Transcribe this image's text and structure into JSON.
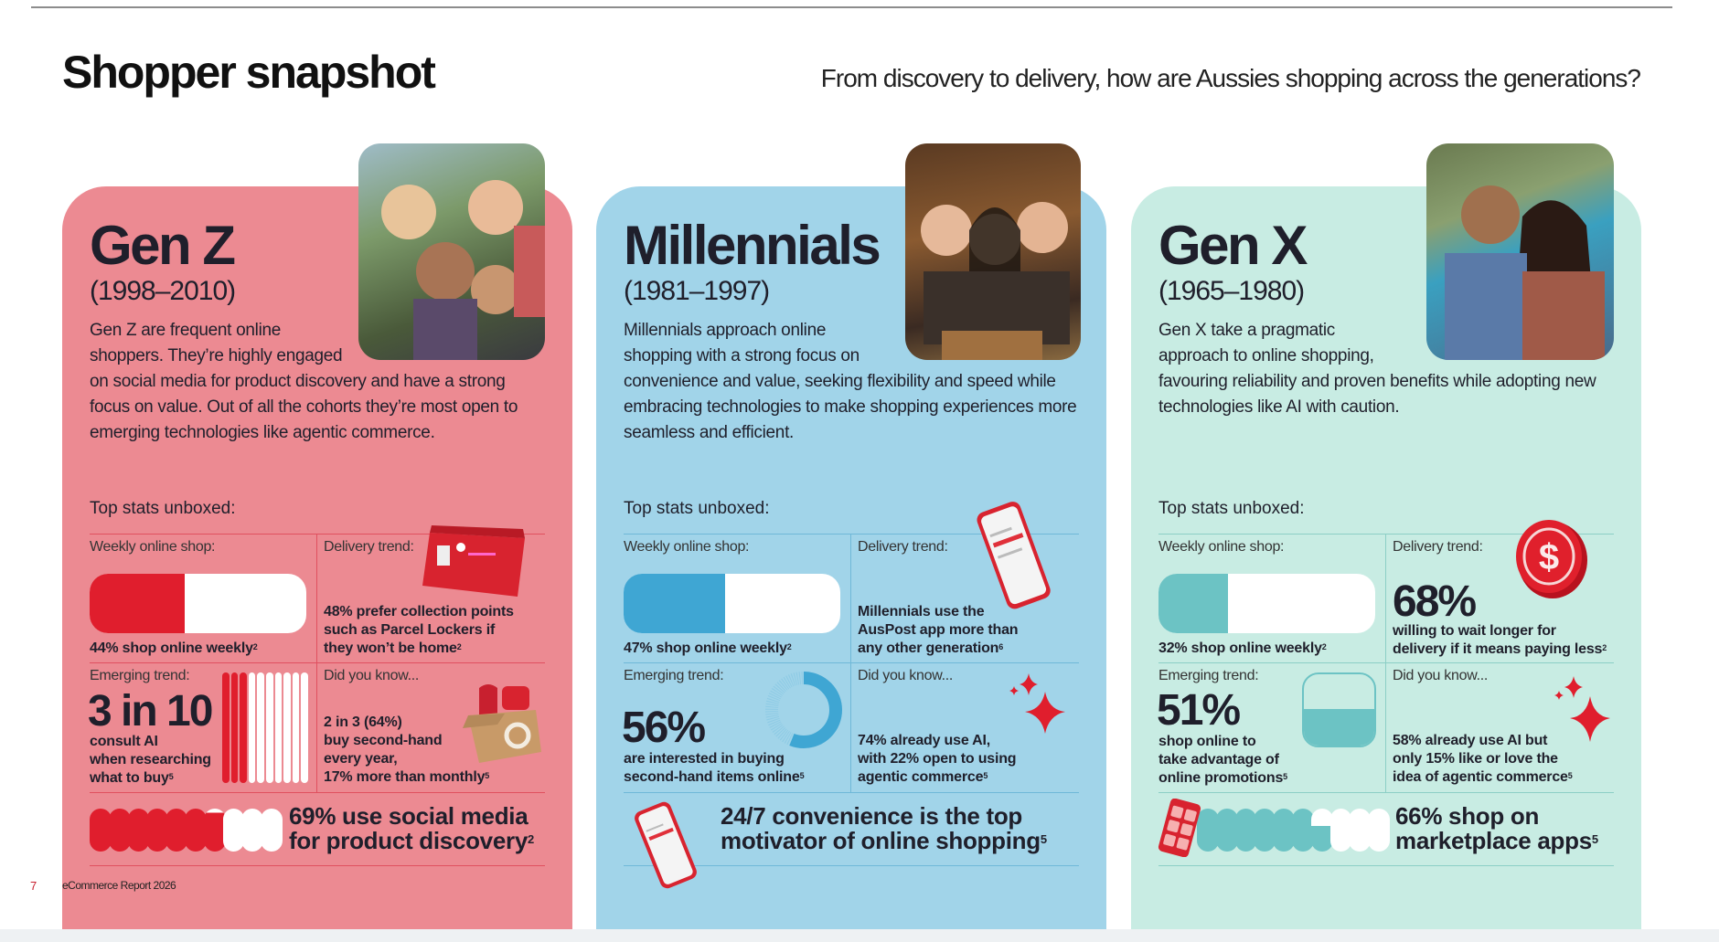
{
  "header": {
    "title": "Shopper snapshot",
    "subtitle": "From discovery to delivery, how are Aussies shopping across the generations?"
  },
  "footer": {
    "page": "7",
    "report": "eCommerce Report 2026"
  },
  "colors": {
    "genz_bg": "#ec8a92",
    "genz_accent": "#e01e2d",
    "mill_bg": "#a1d4e9",
    "mill_accent": "#3fa6d3",
    "genx_bg": "#c8ece3",
    "genx_accent": "#6cc3c4",
    "text": "#1f1f2b"
  },
  "cards": [
    {
      "name": "Gen Z",
      "years": "(1998–2010)",
      "body": "Gen Z are frequent online shoppers. They’re highly engaged on social media for product discovery and have a strong focus on value. Out of all the cohorts they’re most open to emerging technologies like agentic commerce.",
      "top_stats": "Top stats unboxed:",
      "weekly": {
        "label": "Weekly online shop:",
        "text": "44% shop online weekly",
        "fn": "2",
        "fill": 0.44
      },
      "delivery": {
        "label": "Delivery trend:",
        "lines": [
          "48% prefer collection points",
          "such as Parcel Lockers if",
          "they won’t be home"
        ],
        "fn": "2"
      },
      "emerging": {
        "label": "Emerging trend:",
        "big": "3 in 10",
        "lines": [
          "consult AI",
          "when researching",
          "what to buy"
        ],
        "fn": "5",
        "bars_total": 10,
        "bars_filled": 3
      },
      "did_you_know": {
        "label": "Did you know...",
        "lines": [
          "2 in 3 (64%)",
          "buy second-hand",
          "every year,",
          "17% more than monthly"
        ],
        "fn": "5"
      },
      "headline": {
        "lines": [
          "69% use social media",
          "for product discovery"
        ],
        "fn": "2",
        "bubbles_total": 10,
        "bubbles_filled": 6.9
      }
    },
    {
      "name": "Millennials",
      "years": "(1981–1997)",
      "body": "Millennials approach online shopping with a strong focus on convenience and value, seeking flexibility and speed while embracing technologies to make shopping experiences more seamless and efficient.",
      "top_stats": "Top stats unboxed:",
      "weekly": {
        "label": "Weekly online shop:",
        "text": "47% shop online weekly",
        "fn": "2",
        "fill": 0.47
      },
      "delivery": {
        "label": "Delivery trend:",
        "lines": [
          "Millennials use the",
          "AusPost app more than",
          "any other generation"
        ],
        "fn": "6"
      },
      "emerging": {
        "label": "Emerging trend:",
        "big": "56%",
        "lines": [
          "are interested in buying",
          "second-hand items online"
        ],
        "fn": "5",
        "donut": 0.56
      },
      "did_you_know": {
        "label": "Did you know...",
        "lines": [
          "74% already use AI,",
          "with 22% open to using",
          "agentic commerce"
        ],
        "fn": "5"
      },
      "headline": {
        "lines": [
          "24/7 convenience is the top",
          "motivator of online shopping"
        ],
        "fn": "5"
      }
    },
    {
      "name": "Gen X",
      "years": "(1965–1980)",
      "body": "Gen X take a pragmatic approach to online shopping, favouring reliability and proven benefits while adopting new technologies like AI with caution.",
      "top_stats": "Top stats unboxed:",
      "weekly": {
        "label": "Weekly online shop:",
        "text": "32% shop online weekly",
        "fn": "2",
        "fill": 0.32
      },
      "delivery": {
        "label": "Delivery trend:",
        "big": "68%",
        "lines": [
          "willing to wait longer for",
          "delivery if it means paying less"
        ],
        "fn": "2"
      },
      "emerging": {
        "label": "Emerging trend:",
        "big": "51%",
        "lines": [
          "shop online to",
          "take advantage of",
          "online promotions"
        ],
        "fn": "5",
        "level": 0.51
      },
      "did_you_know": {
        "label": "Did you know...",
        "lines": [
          "58% already use AI but",
          "only 15% like or love the",
          "idea of agentic commerce"
        ],
        "fn": "5"
      },
      "headline": {
        "lines": [
          "66% shop on",
          "marketplace apps"
        ],
        "fn": "5",
        "bubbles_total": 10,
        "bubbles_filled": 6.6
      }
    }
  ]
}
